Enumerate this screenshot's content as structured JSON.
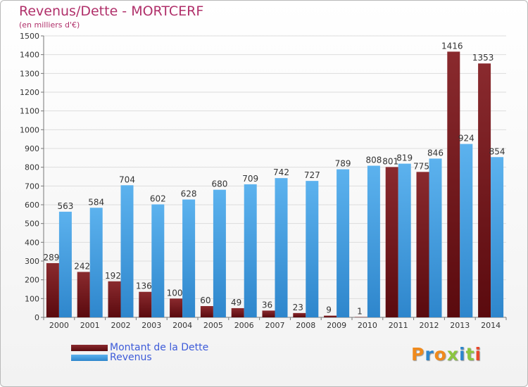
{
  "header": {
    "title": "Revenus/Dette - MORTCERF",
    "subtitle": "(en milliers d'€)"
  },
  "legend": {
    "debt_label": "Montant de la Dette",
    "revenue_label": "Revenus"
  },
  "logo": {
    "text": "Proxiti",
    "letters": [
      "P",
      "r",
      "o",
      "x",
      "i",
      "t",
      "i"
    ]
  },
  "colors": {
    "debt": "#7a1e22",
    "revenue": "#4ea6e6",
    "title": "#b0306a",
    "legend_text": "#3d5bd9"
  },
  "chart_data": {
    "type": "bar",
    "title": "Revenus/Dette - MORTCERF",
    "subtitle": "(en milliers d'€)",
    "xlabel": "",
    "ylabel": "",
    "ylim": [
      0,
      1500
    ],
    "yticks": [
      0,
      100,
      200,
      300,
      400,
      500,
      600,
      700,
      800,
      900,
      1000,
      1100,
      1200,
      1300,
      1400,
      1500
    ],
    "grid": true,
    "legend_position": "bottom-left",
    "categories": [
      "2000",
      "2001",
      "2002",
      "2003",
      "2004",
      "2005",
      "2006",
      "2007",
      "2008",
      "2009",
      "2010",
      "2011",
      "2012",
      "2013",
      "2014"
    ],
    "series": [
      {
        "name": "Montant de la Dette",
        "values": [
          289,
          242,
          192,
          136,
          100,
          60,
          49,
          36,
          23,
          9,
          1,
          801,
          775,
          1416,
          1353
        ]
      },
      {
        "name": "Revenus",
        "values": [
          563,
          584,
          704,
          602,
          628,
          680,
          709,
          742,
          727,
          789,
          808,
          819,
          846,
          924,
          854
        ]
      }
    ]
  }
}
